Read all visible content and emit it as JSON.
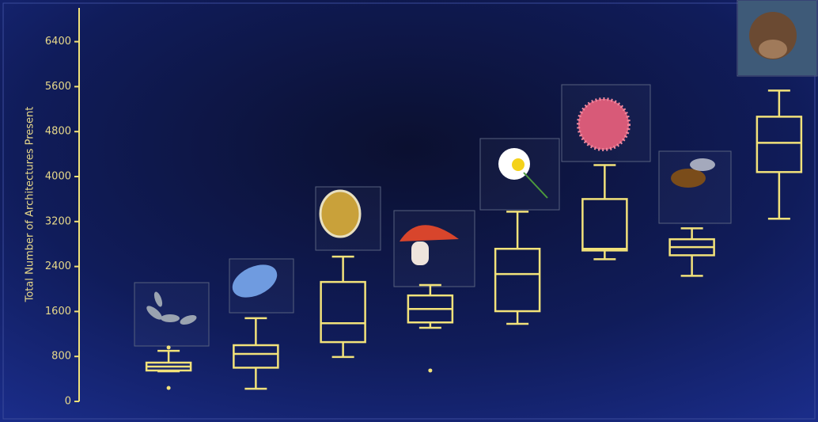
{
  "chart_data": {
    "type": "box",
    "y_label": "Total Number of Architectures Present",
    "color": "#f2e27a",
    "ylim": [
      0,
      7000
    ],
    "yticks": [
      0,
      800,
      1600,
      2400,
      3200,
      4000,
      4800,
      5600,
      6400
    ],
    "categories": [
      null,
      null,
      null,
      null,
      null,
      null,
      null,
      null
    ],
    "boxes": [
      {
        "min": 535,
        "q1": 550,
        "median": 620,
        "q3": 690,
        "max": 900,
        "outliers": [
          960,
          240
        ]
      },
      {
        "min": 225,
        "q1": 600,
        "median": 845,
        "q3": 1000,
        "max": 1480,
        "outliers": []
      },
      {
        "min": 790,
        "q1": 1055,
        "median": 1390,
        "q3": 2125,
        "max": 2575,
        "outliers": []
      },
      {
        "min": 1310,
        "q1": 1405,
        "median": 1645,
        "q3": 1885,
        "max": 2070,
        "outliers": [
          550
        ]
      },
      {
        "min": 1380,
        "q1": 1605,
        "median": 2265,
        "q3": 2715,
        "max": 3375,
        "outliers": []
      },
      {
        "min": 2530,
        "q1": 2685,
        "median": 2715,
        "q3": 3600,
        "max": 4205,
        "outliers": []
      },
      {
        "min": 2235,
        "q1": 2600,
        "median": 2745,
        "q3": 2885,
        "max": 3080,
        "outliers": []
      },
      {
        "min": 3250,
        "q1": 4080,
        "median": 4600,
        "q3": 5065,
        "max": 5530,
        "outliers": []
      }
    ]
  }
}
